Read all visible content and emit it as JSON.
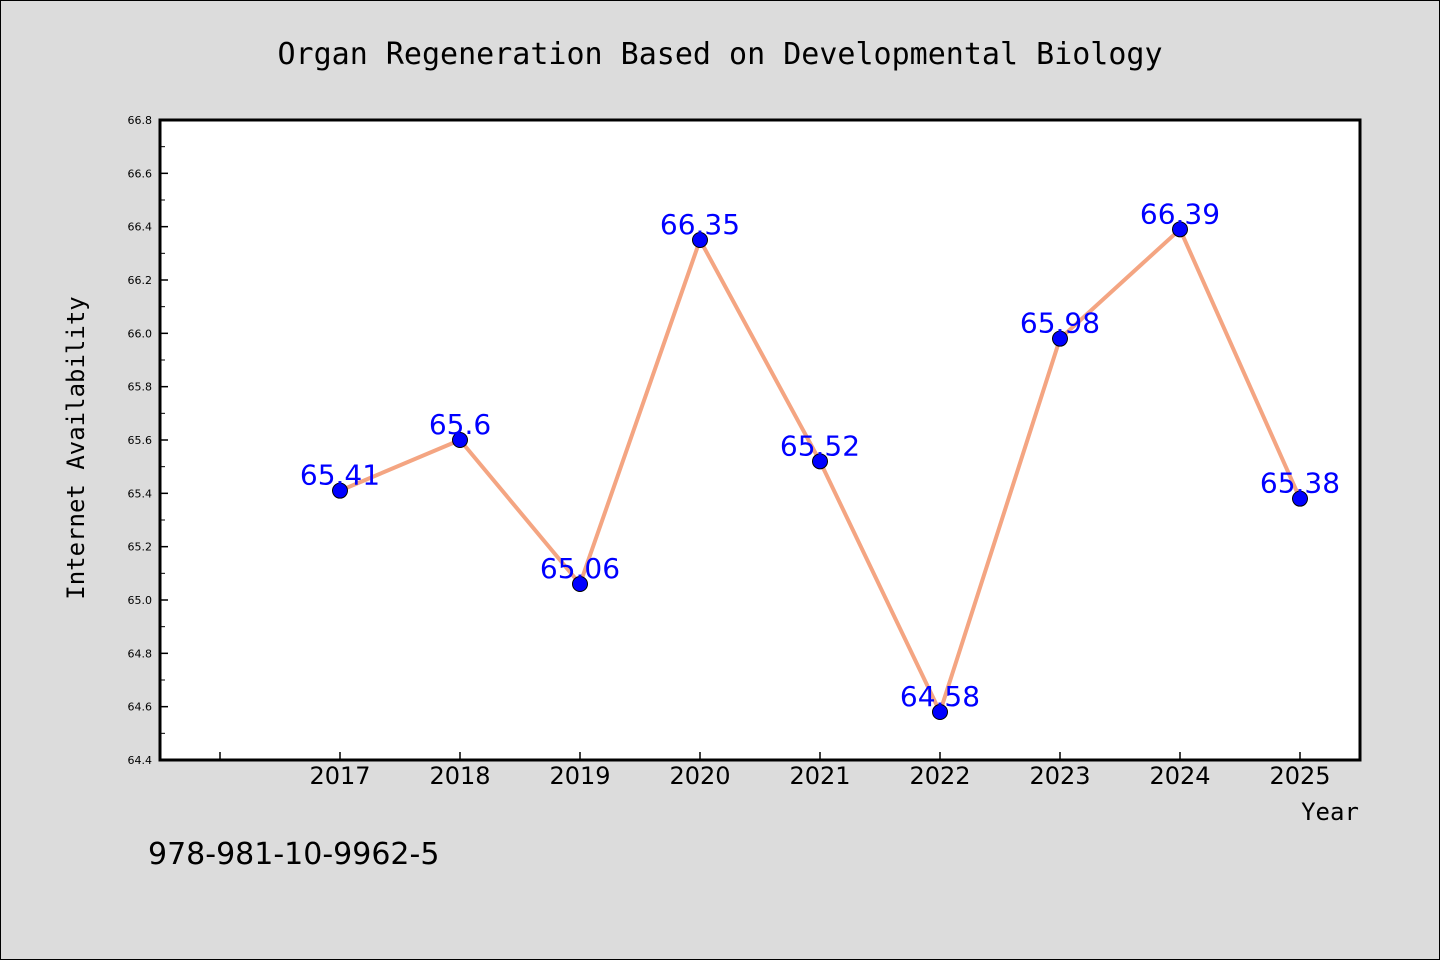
{
  "chart_data": {
    "type": "line",
    "title": "Organ Regeneration Based on Developmental Biology",
    "xlabel": "Year",
    "ylabel": "Internet Availability",
    "categories": [
      "2017",
      "2018",
      "2019",
      "2020",
      "2021",
      "2022",
      "2023",
      "2024",
      "2025"
    ],
    "series": [
      {
        "values": [
          65.41,
          65.6,
          65.06,
          66.35,
          65.52,
          64.58,
          65.98,
          66.39,
          65.38
        ],
        "data_labels": [
          "65.41",
          "65.6",
          "65.06",
          "66.35",
          "65.52",
          "64.58",
          "65.98",
          "66.39",
          "65.38"
        ]
      }
    ],
    "ylim": [
      64.4,
      66.8
    ],
    "yticks": [
      "64.4",
      "64.6",
      "64.8",
      "65.0",
      "65.2",
      "65.4",
      "65.6",
      "65.8",
      "66.0",
      "66.2",
      "66.4",
      "66.6",
      "66.8"
    ],
    "grid": false,
    "legend": "none",
    "colors": {
      "line": "#f4a582",
      "marker": "#0000ff",
      "label": "#0000ff",
      "plot_background": "#ffffff",
      "figure_background": "#dcdcdc"
    }
  },
  "footer_text": "978-981-10-9962-5"
}
